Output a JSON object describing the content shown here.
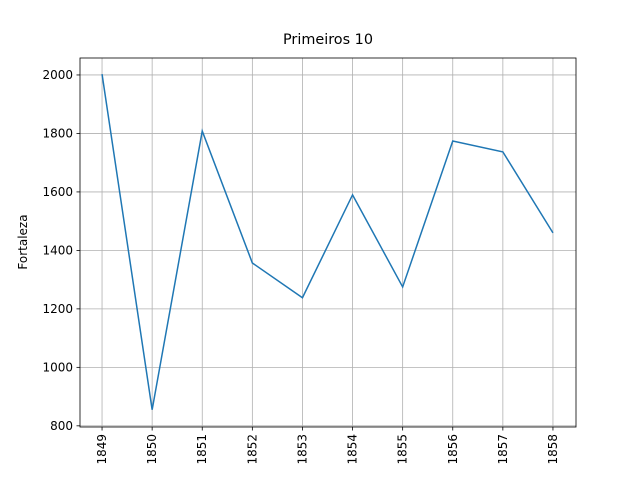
{
  "chart_data": {
    "type": "line",
    "title": "Primeiros 10",
    "ylabel": "Fortaleza",
    "x": [
      1849,
      1850,
      1851,
      1852,
      1853,
      1854,
      1855,
      1856,
      1857,
      1858
    ],
    "series": [
      {
        "name": "Fortaleza",
        "color": "#1f77b4",
        "values": [
          2003,
          855,
          1808,
          1357,
          1238,
          1590,
          1275,
          1774,
          1737,
          1460
        ]
      }
    ],
    "xlim": [
      1848.56,
      1858.46
    ],
    "xticks": [
      1849,
      1850,
      1851,
      1852,
      1853,
      1854,
      1855,
      1856,
      1857,
      1858
    ],
    "ylim": [
      796,
      2058
    ],
    "yticks": [
      800,
      1000,
      1200,
      1400,
      1600,
      1800,
      2000
    ],
    "grid": true
  }
}
